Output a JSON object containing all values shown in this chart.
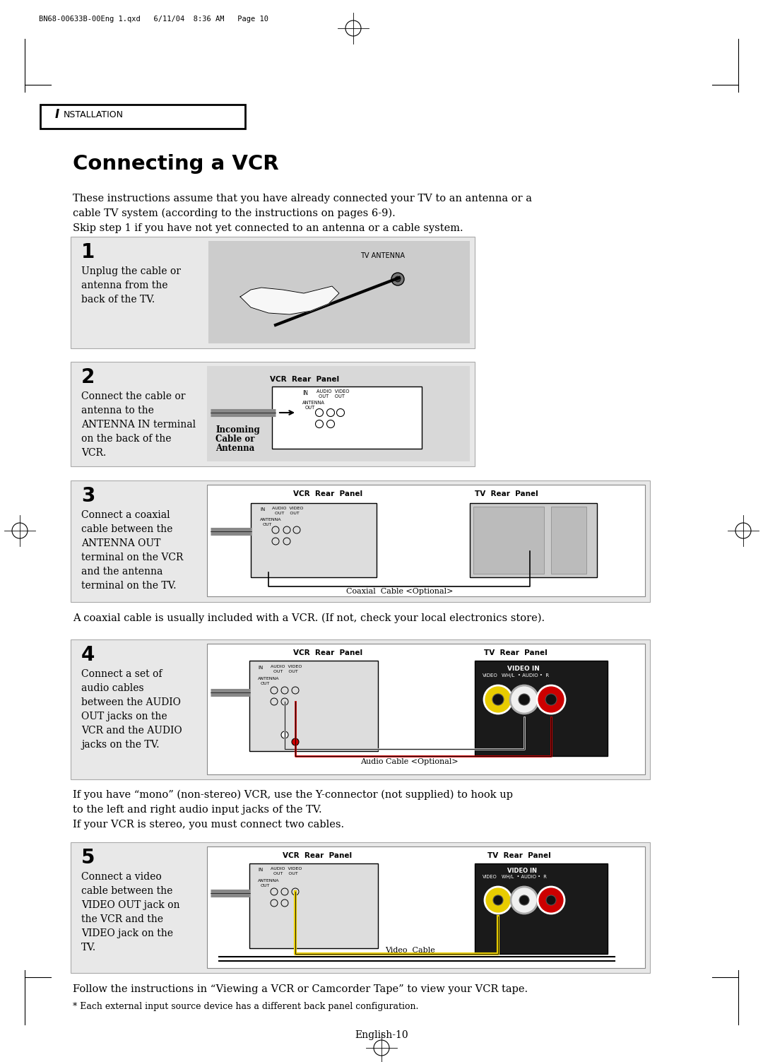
{
  "page_header": "BN68-00633B-00Eng 1.qxd   6/11/04  8:36 AM   Page 10",
  "section_label": "INSTALLATION",
  "title": "Connecting a VCR",
  "intro_text": [
    "These instructions assume that you have already connected your TV to an antenna or a",
    "cable TV system (according to the instructions on pages 6-9).",
    "Skip step 1 if you have not yet connected to an antenna or a cable system."
  ],
  "step1_num": "1",
  "step1_text": [
    "Unplug the cable or",
    "antenna from the",
    "back of the TV."
  ],
  "step2_num": "2",
  "step2_text": [
    "Connect the cable or",
    "antenna to the",
    "ANTENNA IN terminal",
    "on the back of the",
    "VCR."
  ],
  "step3_num": "3",
  "step3_text": [
    "Connect a coaxial",
    "cable between the",
    "ANTENNA OUT",
    "terminal on the VCR",
    "and the antenna",
    "terminal on the TV."
  ],
  "step4_num": "4",
  "step4_text": [
    "Connect a set of",
    "audio cables",
    "between the AUDIO",
    "OUT jacks on the",
    "VCR and the AUDIO",
    "jacks on the TV."
  ],
  "step5_num": "5",
  "step5_text": [
    "Connect a video",
    "cable between the",
    "VIDEO OUT jack on",
    "the VCR and the",
    "VIDEO jack on the",
    "TV."
  ],
  "coaxial_note": "A coaxial cable is usually included with a VCR. (If not, check your local electronics store).",
  "mono_note": [
    "If you have “mono” (non-stereo) VCR, use the Y-connector (not supplied) to hook up",
    "to the left and right audio input jacks of the TV.",
    "If your VCR is stereo, you must connect two cables."
  ],
  "follow_note": "Follow the instructions in “Viewing a VCR or Camcorder Tape” to view your VCR tape.",
  "disclaimer": "* Each external input source device has a different back panel configuration.",
  "page_num": "English-10",
  "bg_color": "#ffffff",
  "box_bg": "#e8e8e8",
  "text_color": "#000000"
}
